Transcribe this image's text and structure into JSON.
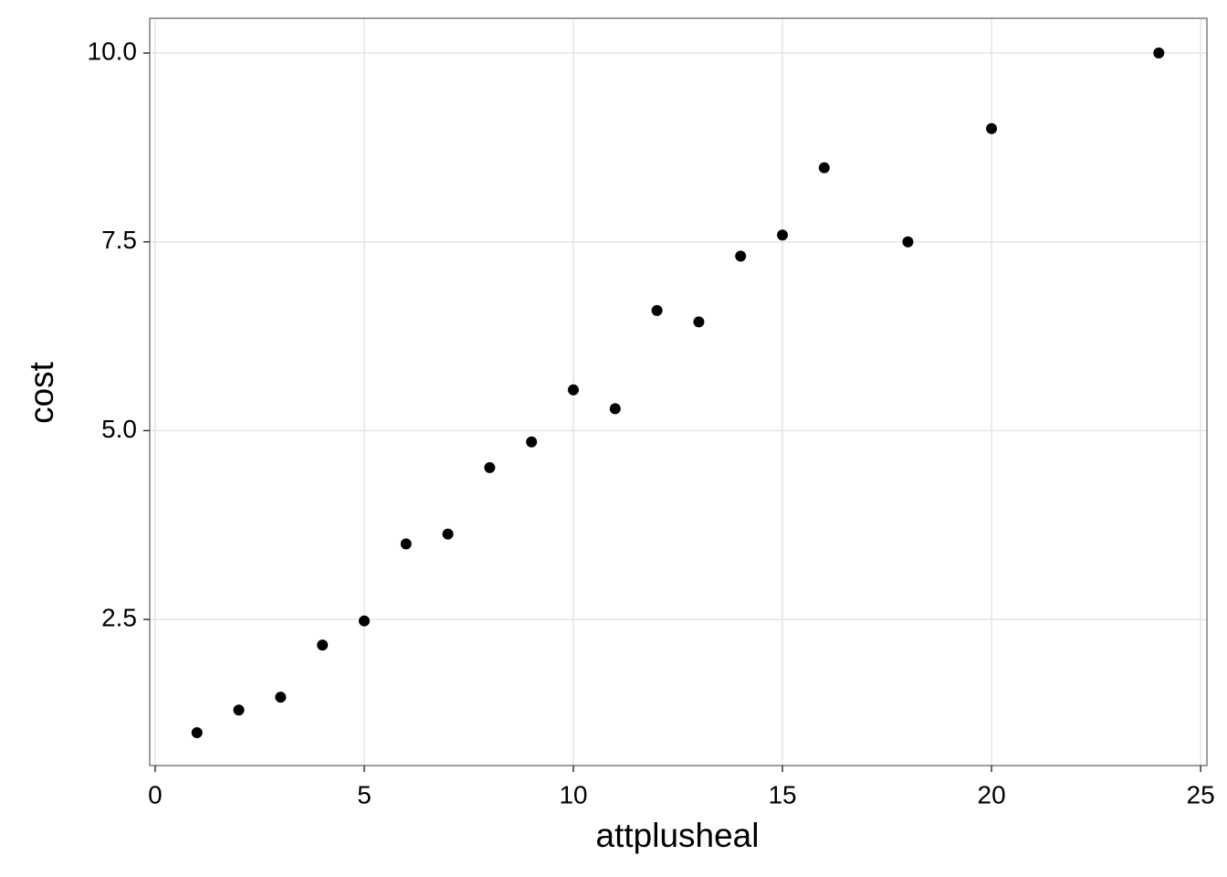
{
  "chart_data": {
    "type": "scatter",
    "x_label": "attplusheal",
    "y_label": "cost",
    "x": [
      1,
      2,
      3,
      4,
      5,
      6,
      7,
      8,
      9,
      10,
      11,
      12,
      13,
      14,
      15,
      16,
      18,
      20,
      24
    ],
    "values": [
      1.0,
      1.3,
      1.47,
      2.16,
      2.48,
      3.5,
      3.63,
      4.51,
      4.85,
      5.54,
      5.29,
      6.59,
      6.44,
      7.31,
      7.59,
      8.48,
      7.5,
      9.0,
      10.0
    ],
    "color": "#000000",
    "xlim": [
      -0.13,
      25.15
    ],
    "xticks": [
      0,
      5,
      10,
      15,
      20,
      25
    ],
    "ylim": [
      0.565,
      10.46
    ],
    "yticks": [
      2.5,
      {
        "value": 5,
        "label": "5.0"
      },
      7.5,
      {
        "value": 10,
        "label": "10.0"
      }
    ],
    "grid": true
  }
}
